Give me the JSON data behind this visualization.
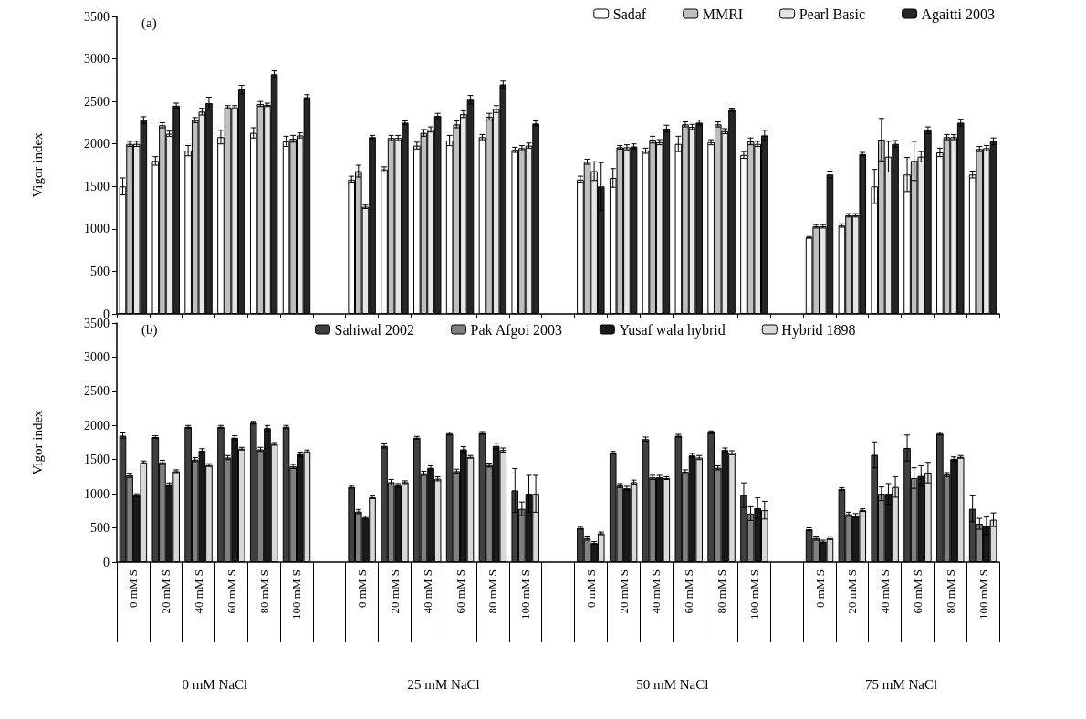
{
  "chart_data": [
    {
      "type": "bar",
      "title": "(a)",
      "ylabel": "Vigor index",
      "categories": [
        null,
        null,
        null,
        null,
        null,
        null,
        null,
        null,
        null,
        null,
        null,
        null,
        null,
        null,
        null,
        null,
        null,
        null,
        null,
        null,
        null,
        null,
        null,
        null,
        null,
        null,
        null
      ],
      "series": [
        {
          "name": "Sadaf",
          "color": "#ffffff",
          "values": [
            1500,
            1800,
            1920,
            2080,
            2130,
            2030,
            null,
            1580,
            1700,
            1980,
            2040,
            2080,
            1930,
            null,
            1580,
            1600,
            1920,
            2000,
            2020,
            1870,
            null,
            900,
            1040,
            1500,
            1640,
            1900,
            1640
          ],
          "errors": [
            100,
            50,
            60,
            80,
            60,
            60,
            null,
            40,
            30,
            40,
            60,
            30,
            30,
            null,
            40,
            110,
            30,
            90,
            30,
            40,
            null,
            10,
            20,
            200,
            200,
            50,
            40
          ]
        },
        {
          "name": "MMRI",
          "color": "#bfbfbf",
          "values": [
            2000,
            2220,
            2280,
            2430,
            2470,
            2060,
            null,
            1680,
            2070,
            2130,
            2230,
            2320,
            1950,
            null,
            1790,
            1960,
            2050,
            2230,
            2230,
            2030,
            null,
            1030,
            1160,
            2050,
            1800,
            2080,
            1940
          ],
          "errors": [
            30,
            30,
            30,
            20,
            30,
            40,
            null,
            70,
            30,
            40,
            40,
            40,
            30,
            null,
            30,
            20,
            40,
            30,
            30,
            40,
            null,
            20,
            20,
            250,
            230,
            30,
            30
          ]
        },
        {
          "name": "Pearl Basic",
          "color": "#e6e6e6",
          "values": [
            2000,
            2120,
            2380,
            2430,
            2460,
            2100,
            null,
            1260,
            2070,
            2170,
            2350,
            2410,
            1980,
            null,
            1680,
            1960,
            2020,
            2200,
            2150,
            2000,
            null,
            1030,
            1160,
            1850,
            1850,
            2080,
            1950
          ],
          "errors": [
            30,
            30,
            40,
            20,
            20,
            30,
            null,
            20,
            30,
            30,
            40,
            40,
            30,
            null,
            110,
            30,
            30,
            30,
            30,
            30,
            null,
            20,
            20,
            180,
            60,
            30,
            30
          ]
        },
        {
          "name": "Agaitti 2003",
          "color": "#262626",
          "values": [
            2280,
            2450,
            2480,
            2640,
            2820,
            2550,
            null,
            2080,
            2250,
            2330,
            2520,
            2700,
            2240,
            null,
            1500,
            1970,
            2180,
            2250,
            2400,
            2100,
            null,
            1640,
            1880,
            2000,
            2160,
            2250,
            2030
          ],
          "errors": [
            40,
            30,
            70,
            50,
            40,
            30,
            null,
            20,
            20,
            30,
            50,
            40,
            30,
            null,
            280,
            30,
            40,
            30,
            20,
            60,
            null,
            40,
            20,
            40,
            40,
            40,
            40
          ]
        }
      ],
      "ylim": [
        0,
        3500
      ],
      "yticks": [
        0,
        500,
        1000,
        1500,
        2000,
        2500,
        3000,
        3500
      ],
      "grid": false,
      "legend": "top right",
      "tick_labels": "y"
    },
    {
      "type": "bar",
      "title": "(b)",
      "ylabel": "Vigor index",
      "categories": [
        "0 mM S",
        "20 mM S",
        "40 mM S",
        "60 mM S",
        "80 mM S",
        "100 mM S",
        null,
        "0 mM S",
        "20 mM S",
        "40 mM S",
        "60 mM S",
        "80 mM S",
        "100 mM S",
        null,
        "0 mM S",
        "20 mM S",
        "40 mM S",
        "60 mM S",
        "80 mM S",
        "100 mM S",
        null,
        "0 mM S",
        "20 mM S",
        "40 mM S",
        "60 mM S",
        "80 mM S",
        "100 mM S"
      ],
      "series": [
        {
          "name": "Sahiwal 2002",
          "color": "#404040",
          "values": [
            1850,
            1830,
            1980,
            1980,
            2040,
            1980,
            null,
            1100,
            1700,
            1820,
            1880,
            1890,
            1050,
            null,
            500,
            1600,
            1800,
            1850,
            1900,
            980,
            null,
            480,
            1070,
            1570,
            1670,
            1880,
            780
          ],
          "errors": [
            40,
            20,
            20,
            20,
            20,
            20,
            null,
            20,
            30,
            20,
            20,
            20,
            320,
            null,
            20,
            20,
            30,
            20,
            20,
            180,
            null,
            20,
            20,
            190,
            190,
            20,
            190
          ]
        },
        {
          "name": "Pak Afgoi 2003",
          "color": "#808080",
          "values": [
            1270,
            1460,
            1500,
            1530,
            1650,
            1400,
            null,
            740,
            1170,
            1300,
            1330,
            1420,
            780,
            null,
            350,
            1120,
            1240,
            1320,
            1380,
            710,
            null,
            350,
            700,
            1000,
            1230,
            1280,
            560
          ],
          "errors": [
            30,
            30,
            30,
            30,
            30,
            30,
            null,
            30,
            40,
            30,
            30,
            30,
            100,
            null,
            30,
            30,
            30,
            30,
            30,
            100,
            null,
            30,
            30,
            100,
            150,
            30,
            80
          ]
        },
        {
          "name": "Yusaf wala hybrid",
          "color": "#1a1a1a",
          "values": [
            980,
            1140,
            1630,
            1820,
            1960,
            1580,
            null,
            650,
            1120,
            1380,
            1650,
            1700,
            1000,
            null,
            280,
            1080,
            1240,
            1560,
            1640,
            790,
            null,
            300,
            680,
            1000,
            1260,
            1510,
            530
          ],
          "errors": [
            20,
            20,
            30,
            30,
            40,
            30,
            null,
            20,
            30,
            30,
            40,
            40,
            270,
            null,
            20,
            30,
            30,
            30,
            30,
            150,
            null,
            20,
            30,
            150,
            150,
            30,
            130
          ]
        },
        {
          "name": "Hybrid 1898",
          "color": "#d9d9d9",
          "values": [
            1460,
            1330,
            1420,
            1660,
            1730,
            1620,
            null,
            950,
            1170,
            1220,
            1540,
            1640,
            1000,
            null,
            420,
            1170,
            1230,
            1530,
            1600,
            760,
            null,
            350,
            760,
            1100,
            1310,
            1540,
            620
          ],
          "errors": [
            20,
            20,
            20,
            20,
            20,
            20,
            null,
            20,
            20,
            30,
            20,
            30,
            270,
            null,
            20,
            30,
            20,
            30,
            30,
            130,
            null,
            20,
            20,
            150,
            150,
            20,
            100
          ]
        }
      ],
      "ylim": [
        0,
        3500
      ],
      "yticks": [
        0,
        500,
        1000,
        1500,
        2000,
        2500,
        3000,
        3500
      ],
      "grid": false,
      "legend": "top",
      "annotations": [
        "0 mM NaCl",
        "25 mM NaCl",
        "50 mM NaCl",
        "75 mM NaCl"
      ]
    }
  ]
}
